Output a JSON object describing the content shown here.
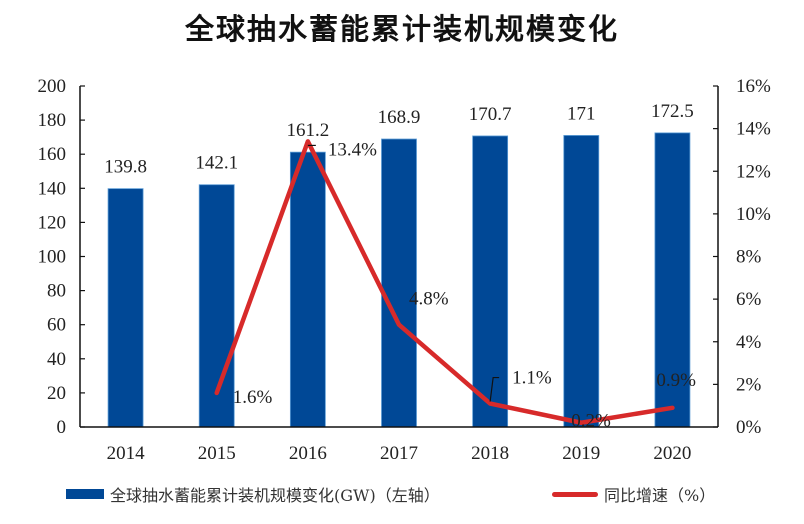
{
  "chart_data": {
    "type": "bar",
    "title": "全球抽水蓄能累计装机规模变化",
    "categories": [
      "2014",
      "2015",
      "2016",
      "2017",
      "2018",
      "2019",
      "2020"
    ],
    "series": [
      {
        "name": "全球抽水蓄能累计装机规模变化(GW)（左轴）",
        "type": "bar",
        "axis": "left",
        "color": "#004896",
        "values": [
          139.8,
          142.1,
          161.2,
          168.9,
          170.7,
          171,
          172.5
        ],
        "labels": [
          "139.8",
          "142.1",
          "161.2",
          "168.9",
          "170.7",
          "171",
          "172.5"
        ]
      },
      {
        "name": "同比增速（%）",
        "type": "line",
        "axis": "right",
        "color": "#d72a2a",
        "x": [
          "2015",
          "2016",
          "2017",
          "2018",
          "2019",
          "2020"
        ],
        "values": [
          1.6,
          13.4,
          4.8,
          1.1,
          0.2,
          0.9
        ],
        "labels": [
          "1.6%",
          "13.4%",
          "4.8%",
          "1.1%",
          "0.2%",
          "0.9%"
        ]
      }
    ],
    "y_left": {
      "min": 0,
      "max": 200,
      "step": 20,
      "ticks": [
        "0",
        "20",
        "40",
        "60",
        "80",
        "100",
        "120",
        "140",
        "160",
        "180",
        "200"
      ]
    },
    "y_right": {
      "min": 0,
      "max": 16,
      "step": 2,
      "ticks": [
        "0%",
        "2%",
        "4%",
        "6%",
        "8%",
        "10%",
        "12%",
        "14%",
        "16%"
      ]
    },
    "xlabel": "",
    "ylabel": "",
    "grid": false,
    "legend_position": "bottom"
  },
  "legend": {
    "bar_label": "全球抽水蓄能累计装机规模变化(GW)（左轴）",
    "line_label": "同比增速（%）"
  }
}
